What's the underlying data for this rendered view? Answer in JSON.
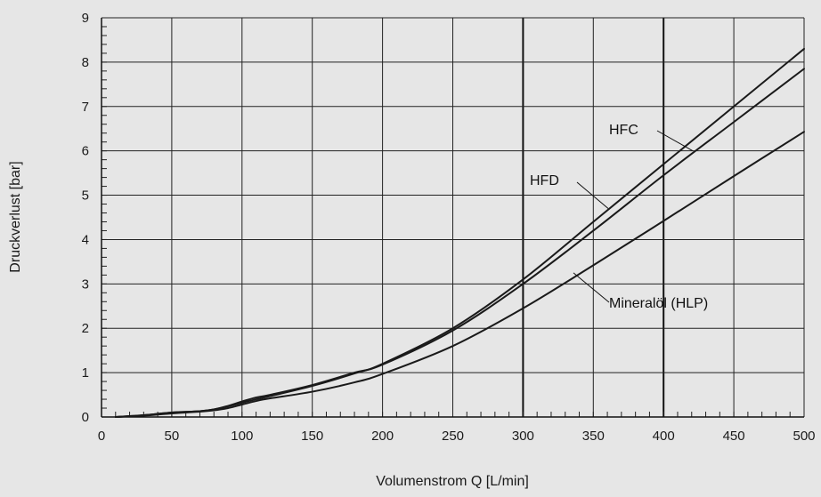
{
  "chart_data": {
    "type": "line",
    "xlabel": "Volumenstrom Q [L/min]",
    "ylabel": "Druckverlust [bar]",
    "xlim": [
      0,
      500
    ],
    "ylim": [
      0,
      9
    ],
    "x_ticks": [
      "0",
      "50",
      "100",
      "150",
      "200",
      "250",
      "300",
      "350",
      "400",
      "450",
      "500"
    ],
    "y_ticks": [
      "0",
      "1",
      "2",
      "3",
      "4",
      "5",
      "6",
      "7",
      "8",
      "9"
    ],
    "grid": true,
    "series": [
      {
        "name": "HFC",
        "x": [
          10,
          30,
          50,
          70,
          80,
          90,
          100,
          110,
          120,
          150,
          180,
          200,
          250,
          300,
          350,
          400,
          450,
          500
        ],
        "y": [
          0.0,
          0.04,
          0.1,
          0.13,
          0.17,
          0.24,
          0.32,
          0.4,
          0.47,
          0.7,
          0.98,
          1.2,
          2.0,
          3.1,
          4.4,
          5.7,
          7.0,
          8.3
        ]
      },
      {
        "name": "HFD",
        "x": [
          10,
          30,
          50,
          70,
          80,
          90,
          100,
          110,
          120,
          150,
          180,
          200,
          250,
          300,
          350,
          400,
          450,
          500
        ],
        "y": [
          0.0,
          0.04,
          0.1,
          0.13,
          0.17,
          0.25,
          0.35,
          0.44,
          0.5,
          0.72,
          1.0,
          1.18,
          1.95,
          3.0,
          4.2,
          5.45,
          6.65,
          7.85
        ]
      },
      {
        "name": "Mineralöl (HLP)",
        "x": [
          10,
          30,
          50,
          70,
          80,
          90,
          100,
          110,
          120,
          150,
          180,
          200,
          250,
          300,
          350,
          400,
          450,
          500
        ],
        "y": [
          0.0,
          0.03,
          0.08,
          0.12,
          0.15,
          0.2,
          0.28,
          0.36,
          0.42,
          0.57,
          0.78,
          0.97,
          1.6,
          2.45,
          3.42,
          4.42,
          5.43,
          6.43
        ]
      }
    ],
    "annotations": [
      {
        "text": "HFC",
        "series": "HFC"
      },
      {
        "text": "HFD",
        "series": "HFD"
      },
      {
        "text": "Mineralöl (HLP)",
        "series": "Mineralöl (HLP)"
      }
    ]
  }
}
